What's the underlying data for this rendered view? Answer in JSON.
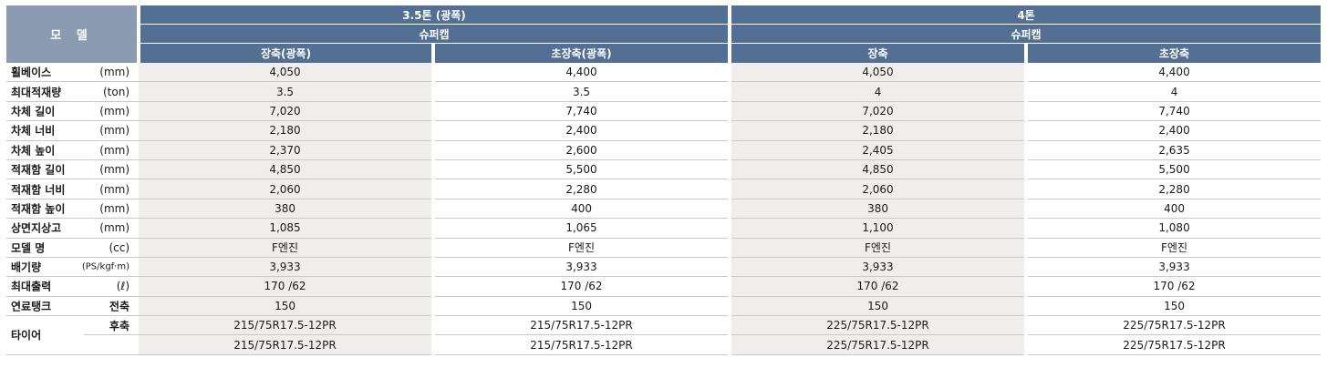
{
  "header": {
    "model_label": "모 델",
    "groups": [
      "3.5톤 (광폭)",
      "4톤"
    ],
    "subgroups": [
      "슈퍼캡",
      "슈퍼캡"
    ],
    "columns": [
      "장축(광폭)",
      "초장축(광폭)",
      "장축",
      "초장축"
    ]
  },
  "rows": [
    {
      "label": "휠베이스",
      "unit": "(mm)",
      "values": [
        "4,050",
        "4,400",
        "4,050",
        "4,400"
      ]
    },
    {
      "label": "최대적재량",
      "unit": "(ton)",
      "values": [
        "3.5",
        "3.5",
        "4",
        "4"
      ]
    },
    {
      "label": "차체 길이",
      "unit": "(mm)",
      "values": [
        "7,020",
        "7,740",
        "7,020",
        "7,740"
      ]
    },
    {
      "label": "차체 너비",
      "unit": "(mm)",
      "values": [
        "2,180",
        "2,400",
        "2,180",
        "2,400"
      ]
    },
    {
      "label": "차체 높이",
      "unit": "(mm)",
      "values": [
        "2,370",
        "2,600",
        "2,405",
        "2,635"
      ]
    },
    {
      "label": "적재함 길이",
      "unit": "(mm)",
      "values": [
        "4,850",
        "5,500",
        "4,850",
        "5,500"
      ]
    },
    {
      "label": "적재함 너비",
      "unit": "(mm)",
      "values": [
        "2,060",
        "2,280",
        "2,060",
        "2,280"
      ]
    },
    {
      "label": "적재함 높이",
      "unit": "(mm)",
      "values": [
        "380",
        "400",
        "380",
        "400"
      ]
    },
    {
      "label": "상면지상고",
      "unit": "(mm)",
      "values": [
        "1,085",
        "1,065",
        "1,100",
        "1,080"
      ]
    },
    {
      "label": "모델 명",
      "unit": "(cc)",
      "values": [
        "F엔진",
        "F엔진",
        "F엔진",
        "F엔진"
      ]
    },
    {
      "label": "배기량",
      "unit": "(PS/kgf·m)",
      "values": [
        "3,933",
        "3,933",
        "3,933",
        "3,933"
      ]
    },
    {
      "label": "최대출력",
      "unit": "(ℓ)",
      "values": [
        "170 /62",
        "170 /62",
        "170 /62",
        "170 /62"
      ]
    },
    {
      "label": "연료탱크",
      "unit": "전축",
      "values": [
        "150",
        "150",
        "150",
        "150"
      ]
    }
  ],
  "tires": {
    "label": "타이어",
    "rows": [
      {
        "sub": "후축",
        "values": [
          "215/75R17.5-12PR",
          "215/75R17.5-12PR",
          "225/75R17.5-12PR",
          "225/75R17.5-12PR"
        ]
      },
      {
        "sub": "",
        "values": [
          "215/75R17.5-12PR",
          "215/75R17.5-12PR",
          "225/75R17.5-12PR",
          "225/75R17.5-12PR"
        ]
      }
    ]
  },
  "colors": {
    "header_bg": "#536f94",
    "model_bg": "#8a9bb2",
    "shade_bg": "#efeeec",
    "rule": "#c9c9c9"
  }
}
